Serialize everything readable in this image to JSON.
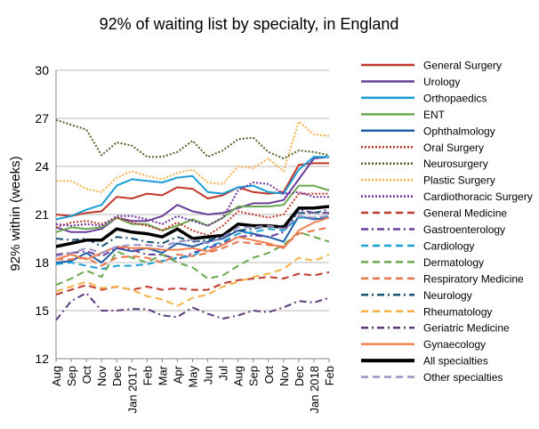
{
  "chart_data": {
    "type": "line",
    "title": "92% of waiting list by specialty, in England",
    "ylabel": "92% within (weeks)",
    "xlabel": "",
    "ylim": [
      12,
      30
    ],
    "yticks": [
      12,
      15,
      18,
      21,
      24,
      27,
      30
    ],
    "grid": true,
    "legend_position": "right",
    "x": [
      "Aug",
      "Sep",
      "Oct",
      "Nov",
      "Dec",
      "Jan",
      "Feb",
      "Mar",
      "Apr",
      "May",
      "Jun",
      "Jul",
      "Aug",
      "Sep",
      "Oct",
      "Nov",
      "Dec",
      "Jan",
      "Feb"
    ],
    "x_tick_labels": [
      "Aug",
      "Sep",
      "Oct",
      "Nov",
      "Dec",
      "Jan 2017",
      "Feb",
      "Mar",
      "Apr",
      "May",
      "Jun",
      "Jul",
      "Aug",
      "Sep",
      "Oct",
      "Nov",
      "Dec",
      "Jan 2018",
      "Feb"
    ],
    "series": [
      {
        "name": "General Surgery",
        "color": "#c0392b",
        "dash": "solid",
        "width": 2,
        "values": [
          21.0,
          20.9,
          21.1,
          21.2,
          22.1,
          22.0,
          22.3,
          22.2,
          22.7,
          22.6,
          22.0,
          22.2,
          22.7,
          22.4,
          22.3,
          22.4,
          24.1,
          24.2,
          24.2
        ]
      },
      {
        "name": "Urology",
        "color": "#6a3d9a",
        "dash": "solid",
        "width": 2,
        "values": [
          20.2,
          19.9,
          19.9,
          20.1,
          20.8,
          20.6,
          20.6,
          20.9,
          21.6,
          21.2,
          21.0,
          21.1,
          21.4,
          21.7,
          21.7,
          21.9,
          23.2,
          24.5,
          24.6
        ]
      },
      {
        "name": "Orthopaedics",
        "color": "#1b9ed6",
        "dash": "solid",
        "width": 2,
        "values": [
          20.7,
          20.9,
          21.3,
          21.6,
          22.8,
          23.2,
          23.1,
          23.0,
          23.3,
          23.4,
          22.4,
          22.3,
          22.7,
          22.8,
          22.4,
          22.3,
          23.8,
          24.6,
          24.6
        ]
      },
      {
        "name": "ENT",
        "color": "#6aa84f",
        "dash": "solid",
        "width": 2,
        "values": [
          19.9,
          20.2,
          20.1,
          20.2,
          20.8,
          20.4,
          20.4,
          20.0,
          20.3,
          20.7,
          20.3,
          20.8,
          21.5,
          21.5,
          21.5,
          21.6,
          22.8,
          22.8,
          22.5
        ]
      },
      {
        "name": "Ophthalmology",
        "color": "#1f5fa8",
        "dash": "solid",
        "width": 2,
        "values": [
          18.0,
          18.1,
          18.6,
          18.0,
          18.9,
          18.7,
          18.9,
          18.6,
          19.2,
          19.0,
          19.3,
          19.5,
          20.0,
          19.8,
          19.6,
          19.3,
          20.9,
          20.7,
          20.8
        ]
      },
      {
        "name": "Oral Surgery",
        "color": "#c0392b",
        "dash": "2,2",
        "width": 2,
        "values": [
          20.2,
          20.5,
          20.6,
          20.4,
          20.8,
          20.5,
          20.3,
          20.0,
          20.5,
          20.0,
          19.7,
          20.3,
          21.2,
          21.0,
          20.8,
          21.0,
          22.3,
          22.3,
          22.3
        ]
      },
      {
        "name": "Neurosurgery",
        "color": "#4f6228",
        "dash": "2,2",
        "width": 2,
        "values": [
          26.9,
          26.6,
          26.3,
          24.7,
          25.5,
          25.3,
          24.6,
          24.6,
          24.9,
          25.6,
          24.6,
          25.0,
          25.7,
          25.8,
          24.9,
          24.5,
          25.0,
          24.9,
          24.7
        ]
      },
      {
        "name": "Plastic Surgery",
        "color": "#f6b043",
        "dash": "2,2",
        "width": 2,
        "values": [
          23.1,
          23.1,
          22.6,
          22.4,
          23.3,
          23.7,
          23.4,
          23.2,
          23.6,
          23.8,
          23.0,
          22.9,
          24.0,
          23.9,
          24.5,
          23.7,
          26.8,
          26.0,
          25.9
        ]
      },
      {
        "name": "Cardiothoracic Surgery",
        "color": "#7030a0",
        "dash": "2,2",
        "width": 2,
        "values": [
          20.4,
          20.3,
          20.4,
          20.3,
          20.9,
          20.9,
          20.7,
          20.4,
          20.9,
          20.6,
          20.3,
          20.8,
          22.5,
          23.0,
          22.9,
          22.3,
          22.4,
          22.1,
          22.1
        ]
      },
      {
        "name": "General Medicine",
        "color": "#c0392b",
        "dash": "8,5",
        "width": 2,
        "values": [
          16.0,
          16.3,
          16.6,
          16.3,
          16.5,
          16.3,
          16.5,
          16.3,
          16.4,
          16.3,
          16.3,
          16.7,
          16.9,
          17.0,
          17.1,
          17.0,
          17.3,
          17.2,
          17.4
        ]
      },
      {
        "name": "Gastroenterology",
        "color": "#6a3d9a",
        "dash": "8,4,2,4",
        "width": 2,
        "values": [
          18.5,
          18.6,
          18.7,
          18.4,
          18.9,
          18.8,
          18.5,
          18.5,
          18.2,
          18.6,
          18.9,
          19.2,
          19.6,
          19.7,
          19.6,
          19.9,
          21.3,
          21.1,
          21.1
        ]
      },
      {
        "name": "Cardiology",
        "color": "#1b9ed6",
        "dash": "8,5",
        "width": 2,
        "values": [
          17.9,
          18.0,
          17.8,
          17.6,
          17.8,
          17.8,
          17.9,
          18.1,
          18.3,
          18.4,
          19.0,
          19.3,
          19.8,
          19.9,
          20.1,
          20.0,
          20.8,
          20.8,
          20.9
        ]
      },
      {
        "name": "Dermatology",
        "color": "#6aa84f",
        "dash": "8,5",
        "width": 2,
        "values": [
          16.6,
          17.0,
          17.5,
          17.1,
          18.7,
          18.3,
          18.0,
          18.5,
          18.0,
          17.7,
          17.0,
          17.2,
          17.8,
          18.3,
          18.6,
          19.1,
          19.9,
          19.6,
          19.3
        ]
      },
      {
        "name": "Respiratory Medicine",
        "color": "#e8734a",
        "dash": "8,5",
        "width": 2,
        "values": [
          18.2,
          18.2,
          18.3,
          17.8,
          18.3,
          18.4,
          18.3,
          18.0,
          18.5,
          18.4,
          18.6,
          18.9,
          19.3,
          19.2,
          19.1,
          19.0,
          19.8,
          20.0,
          20.2
        ]
      },
      {
        "name": "Neurology",
        "color": "#1a5276",
        "dash": "8,4,2,4",
        "width": 2,
        "values": [
          19.5,
          19.4,
          19.5,
          19.0,
          19.6,
          19.5,
          19.3,
          19.2,
          19.6,
          19.3,
          19.4,
          19.6,
          20.0,
          20.1,
          20.3,
          20.3,
          21.1,
          21.1,
          21.3
        ]
      },
      {
        "name": "Rheumatology",
        "color": "#f6b043",
        "dash": "8,5",
        "width": 2,
        "values": [
          16.2,
          16.5,
          16.8,
          16.4,
          16.5,
          16.3,
          15.9,
          15.7,
          15.3,
          15.8,
          16.0,
          16.5,
          16.8,
          17.1,
          17.3,
          17.6,
          18.3,
          18.1,
          18.5
        ]
      },
      {
        "name": "Geriatric Medicine",
        "color": "#5b3a7d",
        "dash": "8,4,2,4",
        "width": 2,
        "values": [
          14.4,
          15.6,
          16.1,
          15.0,
          15.0,
          15.1,
          15.1,
          14.7,
          14.6,
          15.2,
          14.8,
          14.5,
          14.7,
          15.0,
          14.9,
          15.2,
          15.6,
          15.5,
          15.8
        ]
      },
      {
        "name": "Gynaecology",
        "color": "#f08050",
        "dash": "solid",
        "width": 2,
        "values": [
          18.2,
          18.5,
          18.2,
          18.6,
          19.0,
          18.9,
          18.9,
          18.8,
          18.8,
          18.9,
          18.7,
          19.1,
          19.6,
          19.4,
          19.2,
          18.9,
          20.0,
          20.5,
          20.8
        ]
      },
      {
        "name": "All specialties",
        "color": "#000000",
        "dash": "solid",
        "width": 3.5,
        "values": [
          19.0,
          19.2,
          19.4,
          19.4,
          20.1,
          19.9,
          19.8,
          19.6,
          20.1,
          19.5,
          19.6,
          19.7,
          20.4,
          20.3,
          20.3,
          20.2,
          21.4,
          21.4,
          21.5
        ]
      },
      {
        "name": "Other specialties",
        "color": "#9c8fc4",
        "dash": "8,5",
        "width": 2,
        "values": [
          18.4,
          18.6,
          18.9,
          18.6,
          19.0,
          19.1,
          19.1,
          19.0,
          19.3,
          19.4,
          19.2,
          19.6,
          20.2,
          20.2,
          20.3,
          20.1,
          20.9,
          20.8,
          20.9
        ]
      }
    ]
  }
}
